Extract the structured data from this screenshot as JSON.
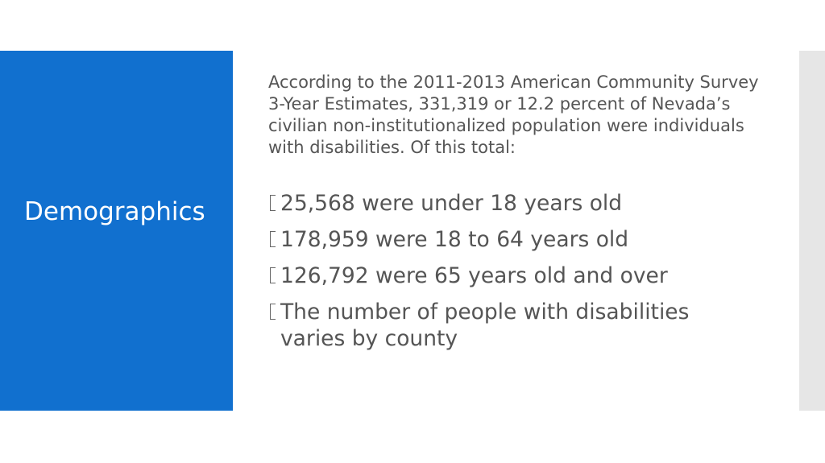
{
  "slide": {
    "title": "Demographics",
    "intro": "According to the 2011-2013 American Community Survey 3-Year Estimates, 331,319 or 12.2 percent of Nevada’s civilian non-institutionalized population were individuals with disabilities. Of this total:",
    "bullets": [
      "25,568 were under 18 years old",
      "178,959 were 18 to 64 years old",
      "126,792 were 65 years old and over",
      "The number of people with disabilities varies by county"
    ]
  }
}
